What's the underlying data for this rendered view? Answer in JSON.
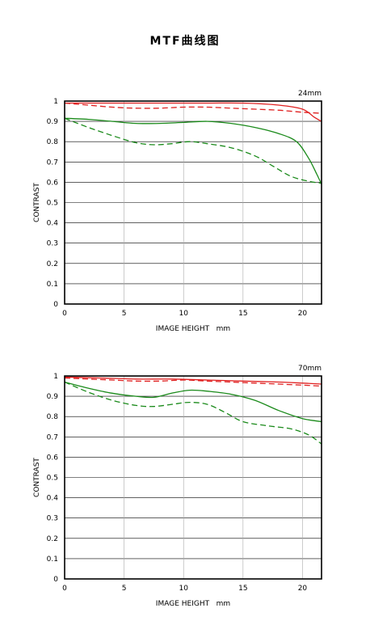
{
  "title": "MTF曲线图",
  "chart_data": [
    {
      "type": "line",
      "title": "24mm",
      "xlabel": "IMAGE HEIGHT   mm",
      "ylabel": "CONTRAST",
      "xlim": [
        0,
        21.6
      ],
      "ylim": [
        0,
        1
      ],
      "xticks": [
        "0",
        "5",
        "10",
        "15",
        "20"
      ],
      "yticks": [
        "0",
        "0.1",
        "0.2",
        "0.3",
        "0.4",
        "0.5",
        "0.6",
        "0.7",
        "0.8",
        "0.9",
        "1"
      ],
      "grid": true,
      "series": [
        {
          "color": "#e02020",
          "dashed": false,
          "x": [
            0,
            3,
            6,
            9,
            12,
            15,
            18,
            20,
            21,
            21.6
          ],
          "y": [
            0.99,
            0.99,
            0.99,
            0.99,
            0.99,
            0.99,
            0.98,
            0.96,
            0.92,
            0.9
          ]
        },
        {
          "color": "#e02020",
          "dashed": true,
          "x": [
            0,
            2,
            4,
            6,
            8,
            10,
            12,
            14,
            16,
            18,
            20,
            21.6
          ],
          "y": [
            0.99,
            0.98,
            0.97,
            0.965,
            0.965,
            0.97,
            0.97,
            0.965,
            0.96,
            0.955,
            0.945,
            0.94
          ]
        },
        {
          "color": "#1a8a1a",
          "dashed": false,
          "x": [
            0,
            2,
            4,
            6,
            8,
            10,
            12,
            14,
            16,
            18,
            19.5,
            20.5,
            21.2,
            21.6
          ],
          "y": [
            0.915,
            0.91,
            0.9,
            0.89,
            0.89,
            0.895,
            0.9,
            0.89,
            0.87,
            0.84,
            0.8,
            0.72,
            0.64,
            0.59
          ]
        },
        {
          "color": "#1a8a1a",
          "dashed": true,
          "x": [
            0,
            2,
            4,
            6,
            7.5,
            9,
            10.5,
            12,
            14,
            16,
            17.5,
            19,
            20.5,
            21.6
          ],
          "y": [
            0.915,
            0.87,
            0.83,
            0.795,
            0.785,
            0.79,
            0.8,
            0.79,
            0.77,
            0.73,
            0.68,
            0.63,
            0.605,
            0.595
          ]
        }
      ]
    },
    {
      "type": "line",
      "title": "70mm",
      "xlabel": "IMAGE HEIGHT   mm",
      "ylabel": "CONTRAST",
      "xlim": [
        0,
        21.6
      ],
      "ylim": [
        0,
        1
      ],
      "xticks": [
        "0",
        "5",
        "10",
        "15",
        "20"
      ],
      "yticks": [
        "0",
        "0.1",
        "0.2",
        "0.3",
        "0.4",
        "0.5",
        "0.6",
        "0.7",
        "0.8",
        "0.9",
        "1"
      ],
      "grid": true,
      "series": [
        {
          "color": "#e02020",
          "dashed": false,
          "x": [
            0,
            3,
            6,
            9,
            12,
            15,
            18,
            20,
            21.6
          ],
          "y": [
            0.995,
            0.99,
            0.985,
            0.985,
            0.98,
            0.975,
            0.97,
            0.965,
            0.96
          ]
        },
        {
          "color": "#e02020",
          "dashed": true,
          "x": [
            0,
            2,
            4,
            6,
            8,
            10,
            12,
            14,
            16,
            18,
            20,
            21.6
          ],
          "y": [
            0.99,
            0.985,
            0.98,
            0.975,
            0.975,
            0.98,
            0.975,
            0.97,
            0.965,
            0.96,
            0.955,
            0.95
          ]
        },
        {
          "color": "#1a8a1a",
          "dashed": false,
          "x": [
            0,
            2,
            4,
            6,
            7.5,
            9,
            10.5,
            12,
            14,
            16,
            18,
            20,
            21.6
          ],
          "y": [
            0.97,
            0.94,
            0.915,
            0.9,
            0.895,
            0.915,
            0.93,
            0.925,
            0.91,
            0.88,
            0.83,
            0.79,
            0.775
          ]
        },
        {
          "color": "#1a8a1a",
          "dashed": true,
          "x": [
            0,
            2,
            4,
            6,
            7.5,
            9,
            10.5,
            12,
            13.5,
            15,
            17,
            19,
            20.5,
            21.6
          ],
          "y": [
            0.97,
            0.92,
            0.88,
            0.855,
            0.85,
            0.86,
            0.87,
            0.86,
            0.82,
            0.775,
            0.755,
            0.74,
            0.71,
            0.665
          ]
        }
      ]
    }
  ]
}
